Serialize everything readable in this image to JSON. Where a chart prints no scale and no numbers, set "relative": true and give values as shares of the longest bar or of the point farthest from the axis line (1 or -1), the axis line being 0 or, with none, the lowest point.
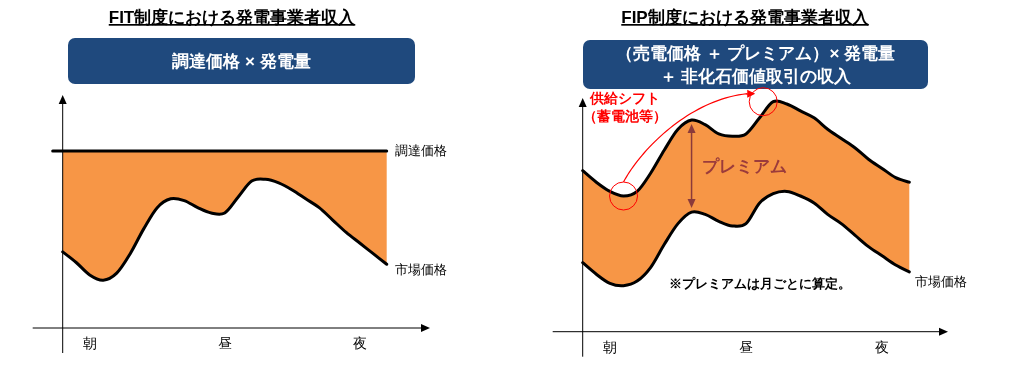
{
  "chart_data": [
    {
      "type": "area",
      "stacked": true,
      "relative": true,
      "legend": false,
      "title": "FIT制度における発電事業者収入",
      "subtitle": "調達価格 × 発電量",
      "categories": [
        null,
        null,
        "朝",
        null,
        null,
        null,
        null,
        null,
        null,
        null,
        null,
        null,
        "昼",
        null,
        null,
        null,
        null,
        null,
        null,
        null,
        null,
        null,
        "夜",
        null,
        null
      ],
      "series": [
        {
          "name": "市場価格",
          "color": "#ffffff",
          "values": [
            0.43,
            0.37,
            0.3,
            0.27,
            0.31,
            0.42,
            0.56,
            0.68,
            0.73,
            0.72,
            0.68,
            0.65,
            0.65,
            0.74,
            0.83,
            0.84,
            0.82,
            0.78,
            0.73,
            0.68,
            0.61,
            0.54,
            0.48,
            0.42,
            0.36
          ]
        },
        {
          "name": "調達価格",
          "color": "#f79646",
          "values": [
            0.57,
            0.63,
            0.7,
            0.73,
            0.69,
            0.58,
            0.44,
            0.32,
            0.27,
            0.28,
            0.32,
            0.35,
            0.35,
            0.26,
            0.17,
            0.16,
            0.18,
            0.22,
            0.27,
            0.32,
            0.39,
            0.46,
            0.52,
            0.58,
            0.64
          ]
        }
      ]
    },
    {
      "type": "area",
      "stacked": true,
      "relative": true,
      "legend": false,
      "title": "FIP制度における発電事業者収入",
      "subtitle": "（売電価格 ＋ プレミアム）× 発電量＋ 非化石価値取引の収入",
      "annotations": [
        "供給シフト（蓄電池等）",
        "※プレミアムは月ごとに算定。"
      ],
      "categories": [
        null,
        null,
        "朝",
        null,
        null,
        null,
        null,
        null,
        null,
        null,
        null,
        null,
        "昼",
        null,
        null,
        null,
        null,
        null,
        null,
        null,
        null,
        null,
        "夜",
        null,
        null
      ],
      "series": [
        {
          "name": "市場価格",
          "color": "#ffffff",
          "values": [
            0.3,
            0.25,
            0.21,
            0.2,
            0.22,
            0.28,
            0.38,
            0.47,
            0.52,
            0.51,
            0.48,
            0.46,
            0.47,
            0.56,
            0.6,
            0.61,
            0.59,
            0.56,
            0.51,
            0.47,
            0.42,
            0.37,
            0.33,
            0.29,
            0.26
          ]
        },
        {
          "name": "プレミアム",
          "color": "#f79646",
          "values": [
            0.4,
            0.4,
            0.4,
            0.39,
            0.39,
            0.41,
            0.41,
            0.41,
            0.4,
            0.39,
            0.38,
            0.39,
            0.39,
            0.37,
            0.4,
            0.38,
            0.37,
            0.37,
            0.37,
            0.37,
            0.38,
            0.38,
            0.38,
            0.38,
            0.39
          ]
        }
      ]
    }
  ]
}
